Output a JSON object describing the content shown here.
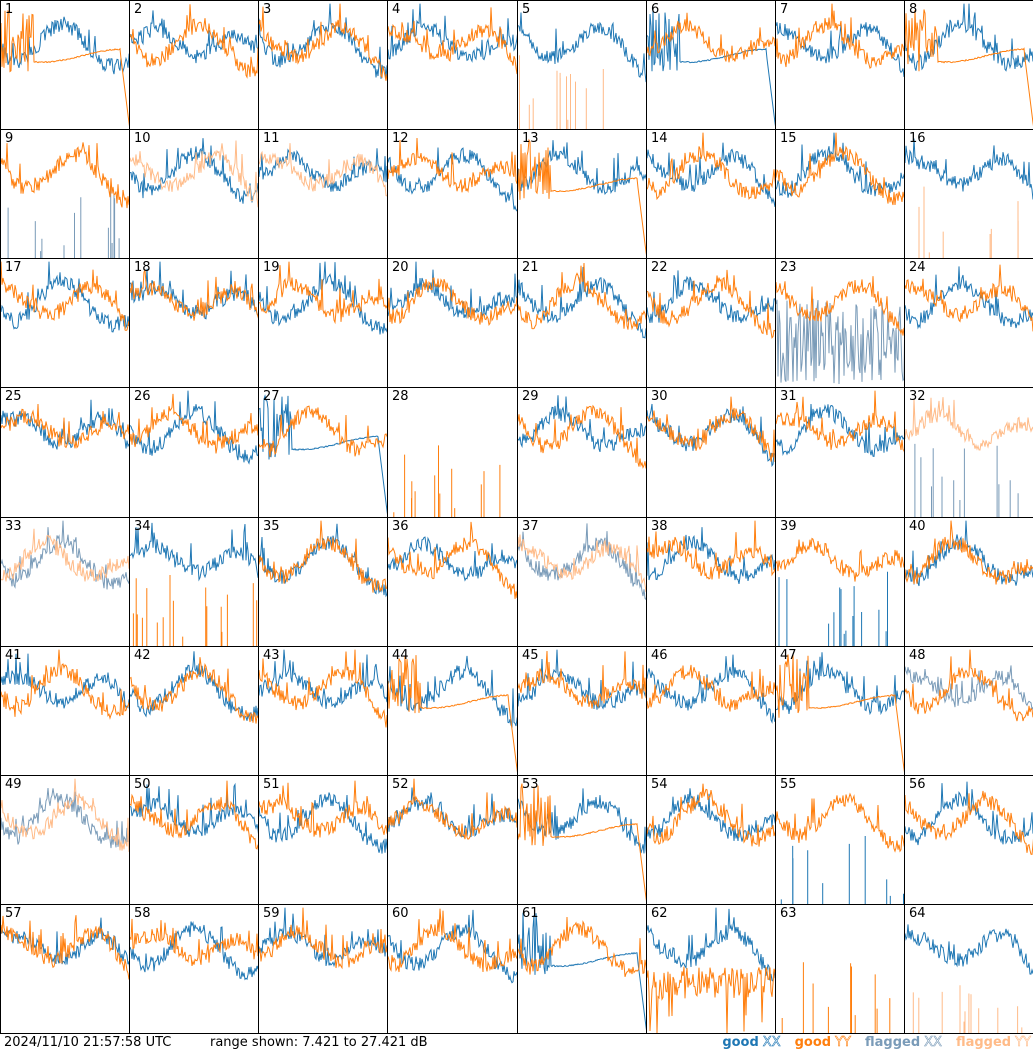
{
  "footer": {
    "timestamp": "2024/11/10 21:57:58 UTC",
    "range_label": "range shown: 7.421 to 27.421 dB"
  },
  "legend": [
    {
      "word": "good",
      "pol": "XX",
      "color": "#1f77b4"
    },
    {
      "word": "good",
      "pol": "YY",
      "color": "#ff7f0e"
    },
    {
      "word": "flagged",
      "pol": "XX",
      "color": "#7a9bb8"
    },
    {
      "word": "flagged",
      "pol": "YY",
      "color": "#ffbb88"
    }
  ],
  "colors": {
    "good_xx": "#1f77b4",
    "good_yy": "#ff7f0e",
    "flagged_xx": "#7a9bb8",
    "flagged_yy": "#ffbb88"
  },
  "chart_data": {
    "type": "line",
    "grid": "8x8 small multiples, one panel per input",
    "ylim_db": [
      7.421,
      27.421
    ],
    "series_keys": [
      "good XX",
      "good YY",
      "flagged XX",
      "flagged YY"
    ],
    "panels": [
      {
        "id": "1",
        "xx": "normal",
        "yy": "rolloff",
        "xx_flag": false,
        "yy_flag": false
      },
      {
        "id": "2",
        "xx": "normal",
        "yy": "normal",
        "xx_flag": false,
        "yy_flag": false
      },
      {
        "id": "3",
        "xx": "normal",
        "yy": "normal",
        "xx_flag": false,
        "yy_flag": false
      },
      {
        "id": "4",
        "xx": "normal",
        "yy": "normal",
        "xx_flag": false,
        "yy_flag": false
      },
      {
        "id": "5",
        "xx": "normal",
        "yy": "spikes",
        "xx_flag": false,
        "yy_flag": true
      },
      {
        "id": "6",
        "xx": "rolloff",
        "yy": "normal",
        "xx_flag": false,
        "yy_flag": false
      },
      {
        "id": "7",
        "xx": "normal",
        "yy": "normal",
        "xx_flag": false,
        "yy_flag": false
      },
      {
        "id": "8",
        "xx": "normal",
        "yy": "rolloff",
        "xx_flag": false,
        "yy_flag": false
      },
      {
        "id": "9",
        "xx": "spikes",
        "yy": "normal",
        "xx_flag": true,
        "yy_flag": false
      },
      {
        "id": "10",
        "xx": "normal",
        "yy": "normal",
        "xx_flag": false,
        "yy_flag": true
      },
      {
        "id": "11",
        "xx": "normal",
        "yy": "normal",
        "xx_flag": false,
        "yy_flag": true
      },
      {
        "id": "12",
        "xx": "normal",
        "yy": "normal",
        "xx_flag": false,
        "yy_flag": false
      },
      {
        "id": "13",
        "xx": "normal",
        "yy": "rolloff",
        "xx_flag": false,
        "yy_flag": false
      },
      {
        "id": "14",
        "xx": "normal",
        "yy": "normal",
        "xx_flag": false,
        "yy_flag": false
      },
      {
        "id": "15",
        "xx": "normal",
        "yy": "normal",
        "xx_flag": false,
        "yy_flag": false
      },
      {
        "id": "16",
        "xx": "normal",
        "yy": "spikes",
        "xx_flag": false,
        "yy_flag": true
      },
      {
        "id": "17",
        "xx": "normal",
        "yy": "normal",
        "xx_flag": false,
        "yy_flag": false
      },
      {
        "id": "18",
        "xx": "normal",
        "yy": "normal",
        "xx_flag": false,
        "yy_flag": false
      },
      {
        "id": "19",
        "xx": "normal",
        "yy": "normal",
        "xx_flag": false,
        "yy_flag": false
      },
      {
        "id": "20",
        "xx": "normal",
        "yy": "normal",
        "xx_flag": false,
        "yy_flag": false
      },
      {
        "id": "21",
        "xx": "normal",
        "yy": "normal",
        "xx_flag": false,
        "yy_flag": false
      },
      {
        "id": "22",
        "xx": "normal",
        "yy": "normal",
        "xx_flag": false,
        "yy_flag": false
      },
      {
        "id": "23",
        "xx": "noisy",
        "yy": "normal",
        "xx_flag": true,
        "yy_flag": false
      },
      {
        "id": "24",
        "xx": "normal",
        "yy": "normal",
        "xx_flag": false,
        "yy_flag": false
      },
      {
        "id": "25",
        "xx": "normal",
        "yy": "normal",
        "xx_flag": false,
        "yy_flag": false
      },
      {
        "id": "26",
        "xx": "normal",
        "yy": "normal",
        "xx_flag": false,
        "yy_flag": false
      },
      {
        "id": "27",
        "xx": "rolloff",
        "yy": "normal",
        "xx_flag": false,
        "yy_flag": false
      },
      {
        "id": "28",
        "xx": "none",
        "yy": "spikes",
        "xx_flag": false,
        "yy_flag": false
      },
      {
        "id": "29",
        "xx": "normal",
        "yy": "normal",
        "xx_flag": false,
        "yy_flag": false
      },
      {
        "id": "30",
        "xx": "normal",
        "yy": "normal",
        "xx_flag": false,
        "yy_flag": false
      },
      {
        "id": "31",
        "xx": "normal",
        "yy": "normal",
        "xx_flag": false,
        "yy_flag": false
      },
      {
        "id": "32",
        "xx": "spikes",
        "yy": "normal",
        "xx_flag": true,
        "yy_flag": true
      },
      {
        "id": "33",
        "xx": "normal",
        "yy": "normal",
        "xx_flag": true,
        "yy_flag": true
      },
      {
        "id": "34",
        "xx": "normal",
        "yy": "spikes",
        "xx_flag": false,
        "yy_flag": false
      },
      {
        "id": "35",
        "xx": "normal",
        "yy": "normal",
        "xx_flag": false,
        "yy_flag": false
      },
      {
        "id": "36",
        "xx": "normal",
        "yy": "normal",
        "xx_flag": false,
        "yy_flag": false
      },
      {
        "id": "37",
        "xx": "normal",
        "yy": "normal",
        "xx_flag": true,
        "yy_flag": true
      },
      {
        "id": "38",
        "xx": "normal",
        "yy": "normal",
        "xx_flag": false,
        "yy_flag": false
      },
      {
        "id": "39",
        "xx": "spikes",
        "yy": "normal",
        "xx_flag": false,
        "yy_flag": false
      },
      {
        "id": "40",
        "xx": "normal",
        "yy": "normal",
        "xx_flag": false,
        "yy_flag": false
      },
      {
        "id": "41",
        "xx": "normal",
        "yy": "normal",
        "xx_flag": false,
        "yy_flag": false
      },
      {
        "id": "42",
        "xx": "normal",
        "yy": "normal",
        "xx_flag": false,
        "yy_flag": false
      },
      {
        "id": "43",
        "xx": "normal",
        "yy": "normal",
        "xx_flag": false,
        "yy_flag": false
      },
      {
        "id": "44",
        "xx": "normal",
        "yy": "rolloff",
        "xx_flag": false,
        "yy_flag": false
      },
      {
        "id": "45",
        "xx": "normal",
        "yy": "normal",
        "xx_flag": false,
        "yy_flag": false
      },
      {
        "id": "46",
        "xx": "normal",
        "yy": "normal",
        "xx_flag": false,
        "yy_flag": false
      },
      {
        "id": "47",
        "xx": "normal",
        "yy": "rolloff",
        "xx_flag": false,
        "yy_flag": false
      },
      {
        "id": "48",
        "xx": "normal",
        "yy": "normal",
        "xx_flag": true,
        "yy_flag": false
      },
      {
        "id": "49",
        "xx": "normal",
        "yy": "normal",
        "xx_flag": true,
        "yy_flag": true
      },
      {
        "id": "50",
        "xx": "normal",
        "yy": "normal",
        "xx_flag": false,
        "yy_flag": false
      },
      {
        "id": "51",
        "xx": "normal",
        "yy": "normal",
        "xx_flag": false,
        "yy_flag": false
      },
      {
        "id": "52",
        "xx": "normal",
        "yy": "normal",
        "xx_flag": false,
        "yy_flag": false
      },
      {
        "id": "53",
        "xx": "normal",
        "yy": "rolloff",
        "xx_flag": false,
        "yy_flag": false
      },
      {
        "id": "54",
        "xx": "normal",
        "yy": "normal",
        "xx_flag": false,
        "yy_flag": false
      },
      {
        "id": "55",
        "xx": "spikes",
        "yy": "normal",
        "xx_flag": false,
        "yy_flag": false
      },
      {
        "id": "56",
        "xx": "normal",
        "yy": "normal",
        "xx_flag": false,
        "yy_flag": false
      },
      {
        "id": "57",
        "xx": "normal",
        "yy": "normal",
        "xx_flag": false,
        "yy_flag": false
      },
      {
        "id": "58",
        "xx": "normal",
        "yy": "normal",
        "xx_flag": false,
        "yy_flag": false
      },
      {
        "id": "59",
        "xx": "normal",
        "yy": "normal",
        "xx_flag": false,
        "yy_flag": false
      },
      {
        "id": "60",
        "xx": "normal",
        "yy": "normal",
        "xx_flag": false,
        "yy_flag": false
      },
      {
        "id": "61",
        "xx": "rolloff",
        "yy": "normal",
        "xx_flag": false,
        "yy_flag": false
      },
      {
        "id": "62",
        "xx": "normal",
        "yy": "low",
        "xx_flag": false,
        "yy_flag": false
      },
      {
        "id": "63",
        "xx": "none",
        "yy": "spikes",
        "xx_flag": false,
        "yy_flag": false
      },
      {
        "id": "64",
        "xx": "normal",
        "yy": "spikes",
        "xx_flag": false,
        "yy_flag": true
      }
    ]
  }
}
